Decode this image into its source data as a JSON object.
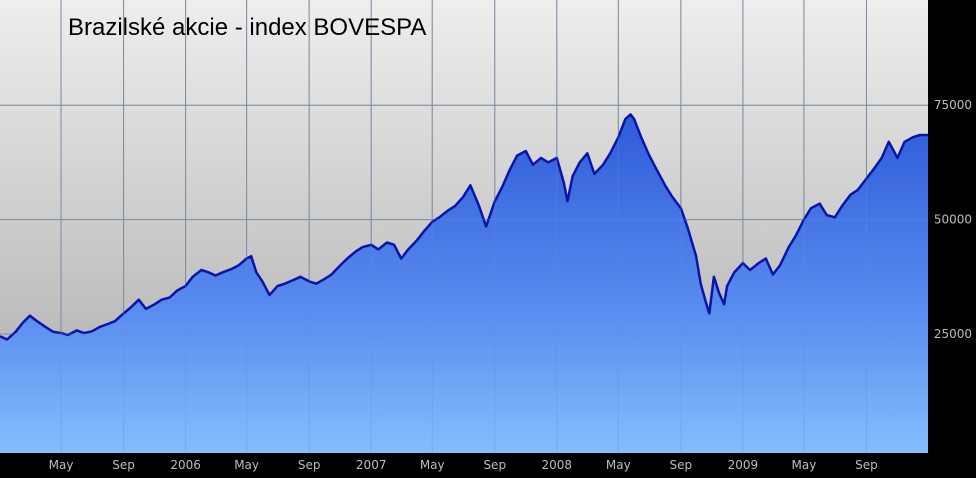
{
  "chart_data": {
    "type": "area",
    "title": "Brazilské akcie - index BOVESPA",
    "xlabel": "",
    "ylabel": "",
    "y_axis_side": "right",
    "ylim": [
      -1000,
      98000
    ],
    "y_ticks": [
      25000,
      50000,
      75000
    ],
    "y_tick_labels": [
      "25000",
      "50000",
      "75000"
    ],
    "x_range": [
      "2005-01-01",
      "2009-12-31"
    ],
    "x_ticks": [
      {
        "date": "2005-05-01",
        "label": "May"
      },
      {
        "date": "2005-09-01",
        "label": "Sep"
      },
      {
        "date": "2006-01-01",
        "label": "2006"
      },
      {
        "date": "2006-05-01",
        "label": "May"
      },
      {
        "date": "2006-09-01",
        "label": "Sep"
      },
      {
        "date": "2007-01-01",
        "label": "2007"
      },
      {
        "date": "2007-05-01",
        "label": "May"
      },
      {
        "date": "2007-09-01",
        "label": "Sep"
      },
      {
        "date": "2008-01-01",
        "label": "2008"
      },
      {
        "date": "2008-05-01",
        "label": "May"
      },
      {
        "date": "2008-09-01",
        "label": "Sep"
      },
      {
        "date": "2009-01-01",
        "label": "2009"
      },
      {
        "date": "2009-05-01",
        "label": "May"
      },
      {
        "date": "2009-09-01",
        "label": "Sep"
      }
    ],
    "grid": true,
    "legend": "none",
    "series": [
      {
        "line_color": "#0a14a8",
        "points": [
          [
            "2005-01-01",
            24500
          ],
          [
            "2005-01-15",
            23800
          ],
          [
            "2005-02-01",
            25500
          ],
          [
            "2005-02-15",
            27500
          ],
          [
            "2005-03-01",
            29000
          ],
          [
            "2005-03-15",
            27800
          ],
          [
            "2005-04-01",
            26500
          ],
          [
            "2005-04-15",
            25500
          ],
          [
            "2005-05-01",
            25200
          ],
          [
            "2005-05-15",
            24800
          ],
          [
            "2005-06-01",
            25800
          ],
          [
            "2005-06-15",
            25200
          ],
          [
            "2005-07-01",
            25600
          ],
          [
            "2005-07-15",
            26500
          ],
          [
            "2005-08-01",
            27200
          ],
          [
            "2005-08-15",
            27800
          ],
          [
            "2005-09-01",
            29500
          ],
          [
            "2005-09-15",
            30800
          ],
          [
            "2005-10-01",
            32500
          ],
          [
            "2005-10-15",
            30500
          ],
          [
            "2005-11-01",
            31500
          ],
          [
            "2005-11-15",
            32500
          ],
          [
            "2005-12-01",
            33000
          ],
          [
            "2005-12-15",
            34500
          ],
          [
            "2006-01-01",
            35500
          ],
          [
            "2006-01-15",
            37500
          ],
          [
            "2006-02-01",
            39000
          ],
          [
            "2006-02-15",
            38500
          ],
          [
            "2006-03-01",
            37800
          ],
          [
            "2006-03-15",
            38500
          ],
          [
            "2006-04-01",
            39200
          ],
          [
            "2006-04-15",
            40000
          ],
          [
            "2006-05-01",
            41500
          ],
          [
            "2006-05-10",
            42000
          ],
          [
            "2006-05-20",
            38500
          ],
          [
            "2006-06-01",
            36500
          ],
          [
            "2006-06-15",
            33500
          ],
          [
            "2006-07-01",
            35500
          ],
          [
            "2006-07-15",
            36000
          ],
          [
            "2006-08-01",
            36800
          ],
          [
            "2006-08-15",
            37500
          ],
          [
            "2006-09-01",
            36500
          ],
          [
            "2006-09-15",
            36000
          ],
          [
            "2006-10-01",
            37000
          ],
          [
            "2006-10-15",
            38000
          ],
          [
            "2006-11-01",
            40000
          ],
          [
            "2006-11-15",
            41500
          ],
          [
            "2006-12-01",
            43000
          ],
          [
            "2006-12-15",
            44000
          ],
          [
            "2007-01-01",
            44500
          ],
          [
            "2007-01-15",
            43500
          ],
          [
            "2007-02-01",
            45000
          ],
          [
            "2007-02-15",
            44500
          ],
          [
            "2007-03-01",
            41500
          ],
          [
            "2007-03-15",
            43500
          ],
          [
            "2007-04-01",
            45500
          ],
          [
            "2007-04-15",
            47500
          ],
          [
            "2007-05-01",
            49500
          ],
          [
            "2007-05-15",
            50500
          ],
          [
            "2007-06-01",
            52000
          ],
          [
            "2007-06-15",
            53000
          ],
          [
            "2007-07-01",
            55000
          ],
          [
            "2007-07-15",
            57500
          ],
          [
            "2007-08-01",
            53000
          ],
          [
            "2007-08-15",
            48500
          ],
          [
            "2007-09-01",
            54000
          ],
          [
            "2007-09-15",
            57000
          ],
          [
            "2007-10-01",
            61000
          ],
          [
            "2007-10-15",
            64000
          ],
          [
            "2007-11-01",
            65000
          ],
          [
            "2007-11-15",
            62000
          ],
          [
            "2007-12-01",
            63500
          ],
          [
            "2007-12-15",
            62500
          ],
          [
            "2008-01-01",
            63500
          ],
          [
            "2008-01-15",
            58000
          ],
          [
            "2008-01-22",
            54000
          ],
          [
            "2008-02-01",
            59500
          ],
          [
            "2008-02-15",
            62500
          ],
          [
            "2008-03-01",
            64500
          ],
          [
            "2008-03-15",
            60000
          ],
          [
            "2008-04-01",
            62000
          ],
          [
            "2008-04-15",
            64500
          ],
          [
            "2008-05-01",
            68000
          ],
          [
            "2008-05-15",
            72000
          ],
          [
            "2008-05-25",
            73000
          ],
          [
            "2008-06-01",
            72000
          ],
          [
            "2008-06-15",
            68000
          ],
          [
            "2008-07-01",
            64000
          ],
          [
            "2008-07-15",
            61000
          ],
          [
            "2008-08-01",
            57500
          ],
          [
            "2008-08-15",
            55000
          ],
          [
            "2008-09-01",
            52500
          ],
          [
            "2008-09-15",
            48000
          ],
          [
            "2008-10-01",
            42000
          ],
          [
            "2008-10-10",
            36000
          ],
          [
            "2008-10-20",
            32000
          ],
          [
            "2008-10-27",
            29500
          ],
          [
            "2008-11-05",
            37500
          ],
          [
            "2008-11-15",
            34000
          ],
          [
            "2008-11-25",
            31500
          ],
          [
            "2008-12-01",
            35500
          ],
          [
            "2008-12-15",
            38500
          ],
          [
            "2009-01-01",
            40500
          ],
          [
            "2009-01-15",
            39000
          ],
          [
            "2009-02-01",
            40500
          ],
          [
            "2009-02-15",
            41500
          ],
          [
            "2009-03-01",
            38000
          ],
          [
            "2009-03-15",
            40000
          ],
          [
            "2009-04-01",
            44000
          ],
          [
            "2009-04-15",
            46500
          ],
          [
            "2009-05-01",
            50000
          ],
          [
            "2009-05-15",
            52500
          ],
          [
            "2009-06-01",
            53500
          ],
          [
            "2009-06-15",
            51000
          ],
          [
            "2009-07-01",
            50500
          ],
          [
            "2009-07-15",
            53000
          ],
          [
            "2009-08-01",
            55500
          ],
          [
            "2009-08-15",
            56500
          ],
          [
            "2009-09-01",
            59000
          ],
          [
            "2009-09-15",
            61000
          ],
          [
            "2009-10-01",
            63500
          ],
          [
            "2009-10-15",
            67000
          ],
          [
            "2009-11-01",
            63500
          ],
          [
            "2009-11-15",
            67000
          ],
          [
            "2009-12-01",
            68000
          ],
          [
            "2009-12-15",
            68500
          ],
          [
            "2009-12-31",
            68500
          ]
        ]
      }
    ]
  }
}
